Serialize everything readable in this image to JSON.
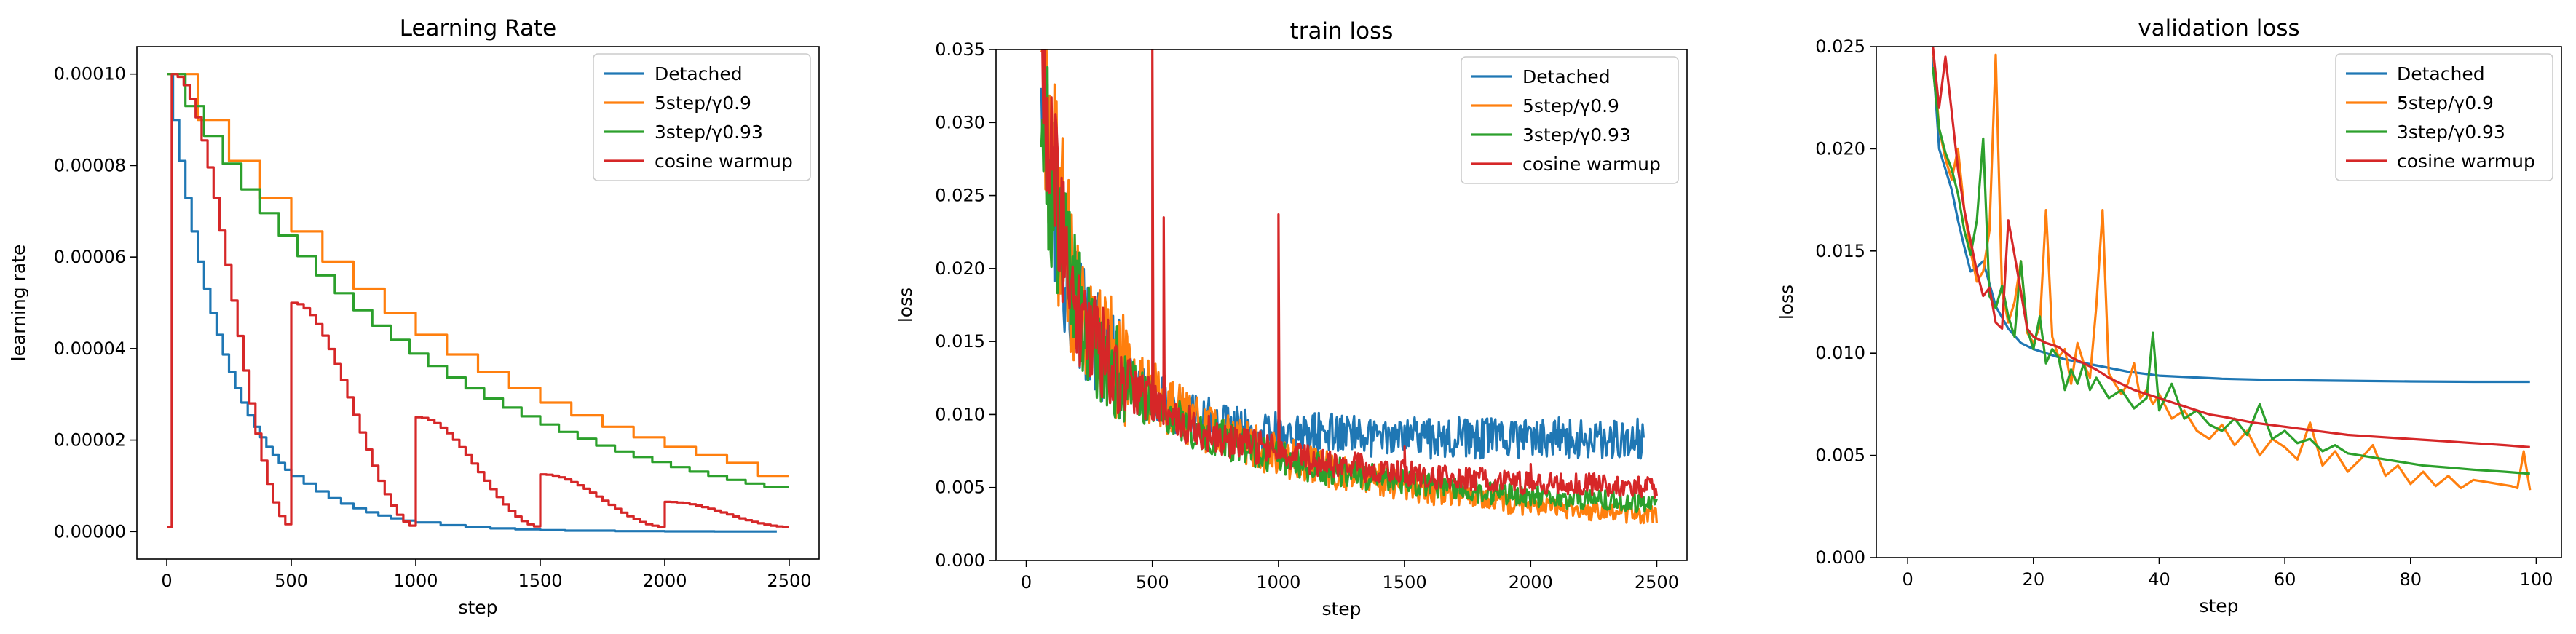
{
  "chart_data": [
    {
      "type": "line",
      "title": "Learning Rate",
      "xlabel": "step",
      "ylabel": "learning rate",
      "xlim": [
        -120,
        2620
      ],
      "ylim": [
        -6e-06,
        0.000106
      ],
      "xticks": [
        0,
        500,
        1000,
        1500,
        2000,
        2500
      ],
      "xtick_labels": [
        "0",
        "500",
        "1000",
        "1500",
        "2000",
        "2500"
      ],
      "yticks": [
        0,
        2e-05,
        4e-05,
        6e-05,
        8e-05,
        0.0001
      ],
      "ytick_labels": [
        "0.00000",
        "0.00002",
        "0.00004",
        "0.00006",
        "0.00008",
        "0.00010"
      ],
      "legend": "top-right",
      "grid": false,
      "series": [
        {
          "name": "Detached",
          "color": "#1f77b4",
          "kind": "step",
          "x_end": 2450,
          "x": [
            0,
            25,
            50,
            75,
            100,
            125,
            150,
            175,
            200,
            225,
            250,
            275,
            300,
            325,
            350,
            375,
            400,
            425,
            450,
            475,
            500,
            550,
            600,
            650,
            700,
            750,
            800,
            850,
            900,
            950,
            1000,
            1100,
            1200,
            1300,
            1400,
            1500,
            1600,
            1800,
            2000,
            2200,
            2400
          ],
          "y": [
            0.0001,
            9e-05,
            8.1e-05,
            7.29e-05,
            6.56e-05,
            5.9e-05,
            5.31e-05,
            4.78e-05,
            4.3e-05,
            3.87e-05,
            3.49e-05,
            3.14e-05,
            2.82e-05,
            2.54e-05,
            2.29e-05,
            2.06e-05,
            1.85e-05,
            1.67e-05,
            1.5e-05,
            1.35e-05,
            1.22e-05,
            1.05e-05,
            8.8e-06,
            7.3e-06,
            6.1e-06,
            5.1e-06,
            4.2e-06,
            3.5e-06,
            2.9e-06,
            2.4e-06,
            2e-06,
            1.4e-06,
            1e-06,
            7e-07,
            5e-07,
            3e-07,
            2e-07,
            1e-07,
            5e-08,
            2e-08,
            1e-08
          ]
        },
        {
          "name": "5step/γ0.9",
          "color": "#ff7f0e",
          "kind": "step",
          "x_end": 2500,
          "x": [
            0,
            125,
            250,
            375,
            500,
            625,
            750,
            875,
            1000,
            1125,
            1250,
            1375,
            1500,
            1625,
            1750,
            1875,
            2000,
            2125,
            2250,
            2375
          ],
          "y": [
            0.0001,
            9e-05,
            8.1e-05,
            7.29e-05,
            6.56e-05,
            5.9e-05,
            5.31e-05,
            4.78e-05,
            4.3e-05,
            3.87e-05,
            3.49e-05,
            3.14e-05,
            2.82e-05,
            2.54e-05,
            2.29e-05,
            2.06e-05,
            1.85e-05,
            1.67e-05,
            1.5e-05,
            1.22e-05
          ]
        },
        {
          "name": "3step/γ0.93",
          "color": "#2ca02c",
          "kind": "step",
          "x_end": 2500,
          "x": [
            0,
            75,
            150,
            225,
            300,
            375,
            450,
            525,
            600,
            675,
            750,
            825,
            900,
            975,
            1050,
            1125,
            1200,
            1275,
            1350,
            1425,
            1500,
            1575,
            1650,
            1725,
            1800,
            1875,
            1950,
            2025,
            2100,
            2175,
            2250,
            2325,
            2400
          ],
          "y": [
            0.0001,
            9.3e-05,
            8.65e-05,
            8.04e-05,
            7.48e-05,
            6.96e-05,
            6.47e-05,
            6.02e-05,
            5.6e-05,
            5.21e-05,
            4.84e-05,
            4.5e-05,
            4.19e-05,
            3.89e-05,
            3.62e-05,
            3.37e-05,
            3.13e-05,
            2.91e-05,
            2.71e-05,
            2.52e-05,
            2.34e-05,
            2.18e-05,
            2.03e-05,
            1.88e-05,
            1.75e-05,
            1.63e-05,
            1.52e-05,
            1.41e-05,
            1.31e-05,
            1.22e-05,
            1.13e-05,
            1.05e-05,
            9.8e-06
          ]
        },
        {
          "name": "cosine warmup",
          "color": "#d62728",
          "kind": "cosine_restarts",
          "x_end": 2500,
          "warmup_start": 0,
          "warmup_end": 20,
          "floor": 1e-06,
          "cycles": [
            {
              "start": 20,
              "end": 500,
              "peak": 0.0001
            },
            {
              "start": 500,
              "end": 1000,
              "peak": 5e-05
            },
            {
              "start": 1000,
              "end": 1500,
              "peak": 2.5e-05
            },
            {
              "start": 1500,
              "end": 2000,
              "peak": 1.25e-05
            },
            {
              "start": 2000,
              "end": 2500,
              "peak": 6.5e-06
            }
          ]
        }
      ]
    },
    {
      "type": "line",
      "title": "train loss",
      "xlabel": "step",
      "ylabel": "loss",
      "xlim": [
        -120,
        2620
      ],
      "ylim": [
        0,
        0.035
      ],
      "xticks": [
        0,
        500,
        1000,
        1500,
        2000,
        2500
      ],
      "xtick_labels": [
        "0",
        "500",
        "1000",
        "1500",
        "2000",
        "2500"
      ],
      "yticks": [
        0,
        0.005,
        0.01,
        0.015,
        0.02,
        0.025,
        0.03,
        0.035
      ],
      "ytick_labels": [
        "0.000",
        "0.005",
        "0.010",
        "0.015",
        "0.020",
        "0.025",
        "0.030",
        "0.035"
      ],
      "legend": "top-right",
      "grid": false,
      "series": [
        {
          "name": "Detached",
          "color": "#1f77b4",
          "noise": 0.17,
          "x": [
            60,
            100,
            150,
            200,
            250,
            300,
            400,
            500,
            600,
            700,
            800,
            900,
            1000,
            1100,
            1200,
            1400,
            1600,
            1800,
            2000,
            2200,
            2400,
            2450
          ],
          "y": [
            0.035,
            0.026,
            0.021,
            0.018,
            0.016,
            0.0145,
            0.0125,
            0.0112,
            0.0103,
            0.0097,
            0.0093,
            0.009,
            0.0088,
            0.0087,
            0.0086,
            0.0085,
            0.0084,
            0.0084,
            0.0084,
            0.0084,
            0.0084,
            0.0084
          ]
        },
        {
          "name": "5step/γ0.9",
          "color": "#ff7f0e",
          "noise": 0.2,
          "x": [
            60,
            100,
            150,
            200,
            250,
            300,
            400,
            500,
            600,
            700,
            800,
            900,
            1000,
            1100,
            1200,
            1400,
            1600,
            1800,
            2000,
            2200,
            2400,
            2500
          ],
          "y": [
            0.035,
            0.027,
            0.022,
            0.0185,
            0.0165,
            0.015,
            0.013,
            0.0115,
            0.0102,
            0.0092,
            0.0084,
            0.0078,
            0.0072,
            0.0067,
            0.0062,
            0.0055,
            0.0048,
            0.0042,
            0.0038,
            0.0035,
            0.0032,
            0.0031
          ]
        },
        {
          "name": "3step/γ0.93",
          "color": "#2ca02c",
          "noise": 0.17,
          "x": [
            60,
            100,
            150,
            200,
            250,
            300,
            400,
            500,
            600,
            700,
            800,
            900,
            1000,
            1100,
            1200,
            1400,
            1600,
            1800,
            2000,
            2200,
            2400,
            2500
          ],
          "y": [
            0.034,
            0.026,
            0.021,
            0.0175,
            0.0155,
            0.014,
            0.0122,
            0.0108,
            0.0097,
            0.0088,
            0.0081,
            0.0075,
            0.007,
            0.0066,
            0.0062,
            0.0056,
            0.0051,
            0.0047,
            0.0044,
            0.0042,
            0.004,
            0.0039
          ]
        },
        {
          "name": "cosine warmup",
          "color": "#d62728",
          "noise": 0.15,
          "x": [
            60,
            100,
            150,
            200,
            250,
            300,
            400,
            500,
            600,
            700,
            800,
            900,
            1000,
            1100,
            1200,
            1400,
            1600,
            1800,
            2000,
            2200,
            2400,
            2500
          ],
          "y": [
            0.035,
            0.027,
            0.021,
            0.0175,
            0.0155,
            0.0142,
            0.0122,
            0.0108,
            0.0097,
            0.0089,
            0.0083,
            0.0078,
            0.0074,
            0.007,
            0.0067,
            0.0062,
            0.0058,
            0.0055,
            0.0053,
            0.0052,
            0.0051,
            0.005
          ],
          "spikes": [
            {
              "x": 500,
              "y": 0.035
            },
            {
              "x": 545,
              "y": 0.0235
            },
            {
              "x": 1000,
              "y": 0.0237
            },
            {
              "x": 1500,
              "y": 0.0078
            },
            {
              "x": 2000,
              "y": 0.0066
            }
          ]
        }
      ]
    },
    {
      "type": "line",
      "title": "validation loss",
      "xlabel": "step",
      "ylabel": "loss",
      "xlim": [
        -5,
        104
      ],
      "ylim": [
        0,
        0.025
      ],
      "xticks": [
        0,
        20,
        40,
        60,
        80,
        100
      ],
      "xtick_labels": [
        "0",
        "20",
        "40",
        "60",
        "80",
        "100"
      ],
      "yticks": [
        0,
        0.005,
        0.01,
        0.015,
        0.02,
        0.025
      ],
      "ytick_labels": [
        "0.000",
        "0.005",
        "0.010",
        "0.015",
        "0.020",
        "0.025"
      ],
      "legend": "top-right",
      "grid": false,
      "series": [
        {
          "name": "Detached",
          "color": "#1f77b4",
          "x": [
            4,
            5,
            6,
            7,
            8,
            9,
            10,
            11,
            12,
            14,
            16,
            18,
            20,
            25,
            30,
            35,
            40,
            50,
            60,
            70,
            80,
            90,
            99
          ],
          "y": [
            0.0245,
            0.02,
            0.019,
            0.018,
            0.0165,
            0.0152,
            0.014,
            0.0142,
            0.0145,
            0.0123,
            0.0112,
            0.0105,
            0.0102,
            0.0097,
            0.0094,
            0.0091,
            0.0089,
            0.00875,
            0.00868,
            0.00865,
            0.00862,
            0.0086,
            0.0086
          ]
        },
        {
          "name": "5step/γ0.9",
          "color": "#ff7f0e",
          "x": [
            4,
            5,
            6,
            7,
            8,
            9,
            10,
            11,
            12,
            13,
            14,
            15,
            16,
            17,
            18,
            19,
            20,
            21,
            22,
            23,
            24,
            25,
            26,
            27,
            28,
            29,
            30,
            31,
            32,
            33,
            34,
            35,
            36,
            37,
            38,
            39,
            40,
            42,
            44,
            46,
            48,
            50,
            52,
            54,
            56,
            58,
            60,
            62,
            64,
            66,
            68,
            70,
            72,
            74,
            76,
            78,
            80,
            82,
            84,
            86,
            88,
            90,
            92,
            94,
            96,
            97,
            98,
            99
          ],
          "y": [
            0.025,
            0.021,
            0.0195,
            0.0185,
            0.02,
            0.017,
            0.015,
            0.0135,
            0.014,
            0.016,
            0.0246,
            0.013,
            0.0115,
            0.0125,
            0.0145,
            0.011,
            0.0105,
            0.0113,
            0.017,
            0.0108,
            0.0098,
            0.0102,
            0.0085,
            0.0105,
            0.0095,
            0.0088,
            0.0123,
            0.017,
            0.009,
            0.0085,
            0.008,
            0.0085,
            0.0095,
            0.0078,
            0.0082,
            0.0075,
            0.008,
            0.0068,
            0.0072,
            0.0062,
            0.0058,
            0.0065,
            0.0055,
            0.0062,
            0.005,
            0.0058,
            0.0054,
            0.0048,
            0.0066,
            0.0045,
            0.0052,
            0.0042,
            0.0048,
            0.0055,
            0.004,
            0.0045,
            0.0036,
            0.0042,
            0.0035,
            0.004,
            0.0034,
            0.0038,
            0.0037,
            0.0036,
            0.0035,
            0.0034,
            0.0052,
            0.0033
          ]
        },
        {
          "name": "3step/γ0.93",
          "color": "#2ca02c",
          "x": [
            4,
            5,
            6,
            7,
            8,
            9,
            10,
            11,
            12,
            13,
            14,
            15,
            16,
            17,
            18,
            19,
            20,
            21,
            22,
            23,
            24,
            25,
            26,
            27,
            28,
            29,
            30,
            32,
            34,
            36,
            38,
            39,
            40,
            42,
            44,
            46,
            48,
            50,
            52,
            54,
            56,
            58,
            60,
            62,
            64,
            66,
            68,
            70,
            74,
            78,
            80,
            82,
            86,
            90,
            95,
            99
          ],
          "y": [
            0.024,
            0.021,
            0.0198,
            0.019,
            0.0178,
            0.016,
            0.0148,
            0.0165,
            0.0205,
            0.0128,
            0.0122,
            0.0133,
            0.0118,
            0.0108,
            0.0145,
            0.0112,
            0.0102,
            0.0118,
            0.0095,
            0.0102,
            0.0098,
            0.0082,
            0.0092,
            0.0085,
            0.0095,
            0.0082,
            0.0088,
            0.0078,
            0.0082,
            0.0073,
            0.0078,
            0.011,
            0.0072,
            0.0085,
            0.0068,
            0.0072,
            0.0065,
            0.0062,
            0.0068,
            0.006,
            0.0075,
            0.0058,
            0.0062,
            0.0056,
            0.0058,
            0.0052,
            0.0055,
            0.0051,
            0.0049,
            0.0047,
            0.0046,
            0.0045,
            0.0044,
            0.0043,
            0.0042,
            0.0041
          ]
        },
        {
          "name": "cosine warmup",
          "color": "#d62728",
          "x": [
            4,
            5,
            6,
            7,
            8,
            9,
            10,
            11,
            12,
            13,
            14,
            15,
            16,
            17,
            18,
            19,
            20,
            22,
            24,
            26,
            28,
            30,
            32,
            34,
            36,
            38,
            40,
            42,
            44,
            46,
            48,
            50,
            55,
            60,
            65,
            70,
            75,
            80,
            85,
            90,
            95,
            99
          ],
          "y": [
            0.025,
            0.022,
            0.0245,
            0.0218,
            0.019,
            0.017,
            0.0155,
            0.014,
            0.0128,
            0.0132,
            0.0115,
            0.0112,
            0.0165,
            0.0148,
            0.013,
            0.0112,
            0.0108,
            0.0105,
            0.0103,
            0.0098,
            0.0095,
            0.0092,
            0.0088,
            0.0085,
            0.0082,
            0.008,
            0.0078,
            0.0076,
            0.0074,
            0.0072,
            0.007,
            0.0069,
            0.0066,
            0.0064,
            0.0062,
            0.006,
            0.0059,
            0.0058,
            0.0057,
            0.0056,
            0.0055,
            0.0054
          ]
        }
      ]
    }
  ]
}
